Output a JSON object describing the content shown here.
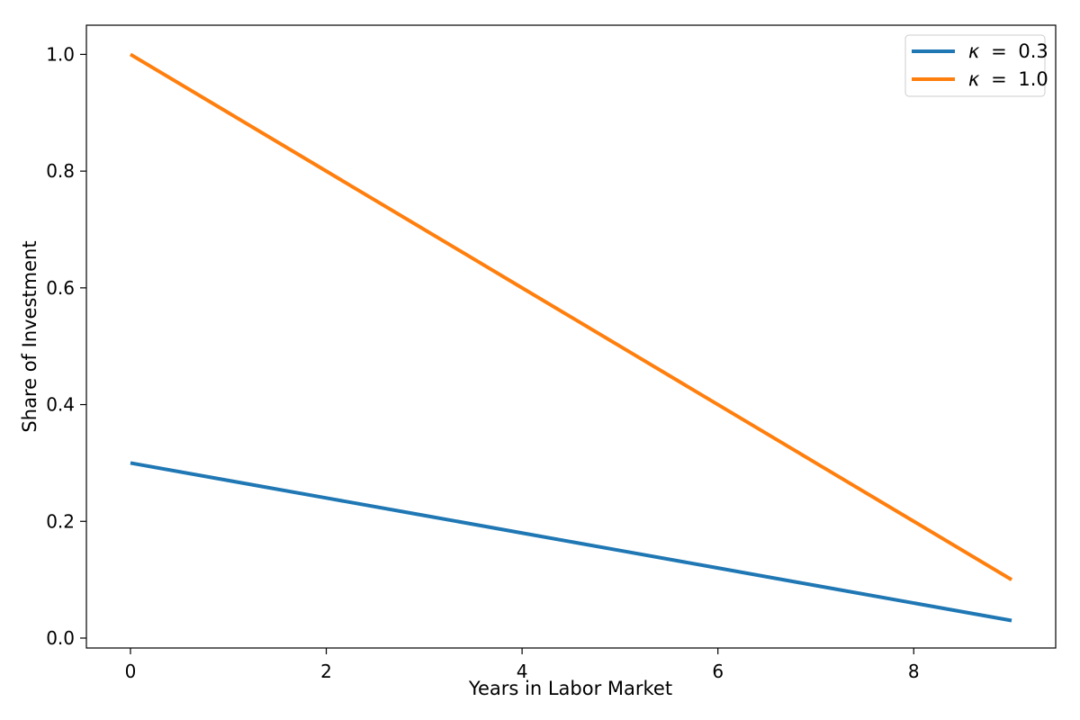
{
  "chart_data": {
    "type": "line",
    "xlabel": "Years in Labor Market",
    "ylabel": "Share of Investment",
    "xlim": [
      -0.45,
      9.45
    ],
    "ylim": [
      -0.017,
      1.05
    ],
    "xticks": [
      0,
      2,
      4,
      6,
      8
    ],
    "yticks": [
      0.0,
      0.2,
      0.4,
      0.6,
      0.8,
      1.0
    ],
    "xtick_labels": [
      "0",
      "2",
      "4",
      "6",
      "8"
    ],
    "ytick_labels": [
      "0.0",
      "0.2",
      "0.4",
      "0.6",
      "0.8",
      "1.0"
    ],
    "grid": false,
    "legend_position": "top-right",
    "x": [
      0,
      1,
      2,
      3,
      4,
      5,
      6,
      7,
      8,
      9
    ],
    "series": [
      {
        "name_prefix": "κ",
        "name_eq": "=",
        "name_value": "0.3",
        "color": "#1f77b4",
        "values": [
          0.3,
          0.27,
          0.24,
          0.21,
          0.18,
          0.15,
          0.12,
          0.09,
          0.06,
          0.03
        ]
      },
      {
        "name_prefix": "κ",
        "name_eq": "=",
        "name_value": "1.0",
        "color": "#ff7f0e",
        "values": [
          1.0,
          0.9,
          0.8,
          0.7,
          0.6,
          0.5,
          0.4,
          0.3,
          0.2,
          0.1
        ]
      }
    ]
  }
}
